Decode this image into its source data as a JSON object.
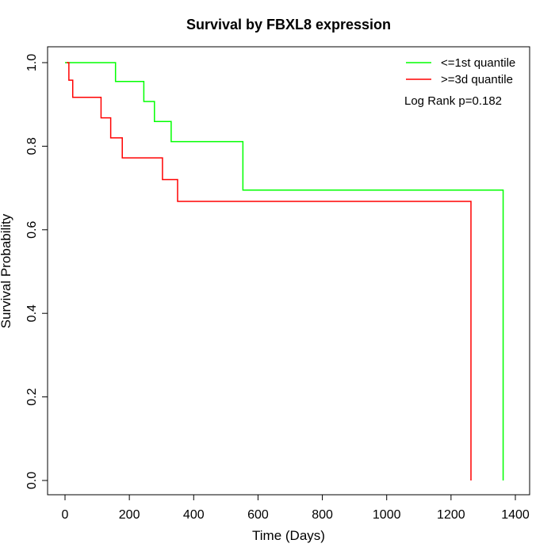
{
  "chart_data": {
    "type": "line",
    "step": true,
    "title": "Survival by FBXL8 expression",
    "xlabel": "Time (Days)",
    "ylabel": "Survival Probability",
    "xlim": [
      0,
      1400
    ],
    "ylim": [
      0,
      1.0
    ],
    "xticks": [
      0,
      200,
      400,
      600,
      800,
      1000,
      1200,
      1400
    ],
    "yticks": [
      0.0,
      0.2,
      0.4,
      0.6,
      0.8,
      1.0
    ],
    "xtick_labels": [
      "0",
      "200",
      "400",
      "600",
      "800",
      "1000",
      "1200",
      "1400"
    ],
    "ytick_labels": [
      "0.0",
      "0.2",
      "0.4",
      "0.6",
      "0.8",
      "1.0"
    ],
    "legend_position": "top-right",
    "annotation": "Log Rank p=0.182",
    "series": [
      {
        "name": "<=1st quantile",
        "color": "#00ff00",
        "x": [
          0,
          157,
          245,
          278,
          330,
          553,
          1362,
          1362
        ],
        "y": [
          1.0,
          0.955,
          0.907,
          0.859,
          0.811,
          0.695,
          0.695,
          0.0
        ]
      },
      {
        "name": ">=3d quantile",
        "color": "#ff0000",
        "x": [
          5,
          12,
          24,
          112,
          142,
          178,
          303,
          350,
          1262,
          1262
        ],
        "y": [
          1.0,
          0.958,
          0.917,
          0.868,
          0.82,
          0.772,
          0.72,
          0.668,
          0.668,
          0.0
        ]
      }
    ]
  }
}
